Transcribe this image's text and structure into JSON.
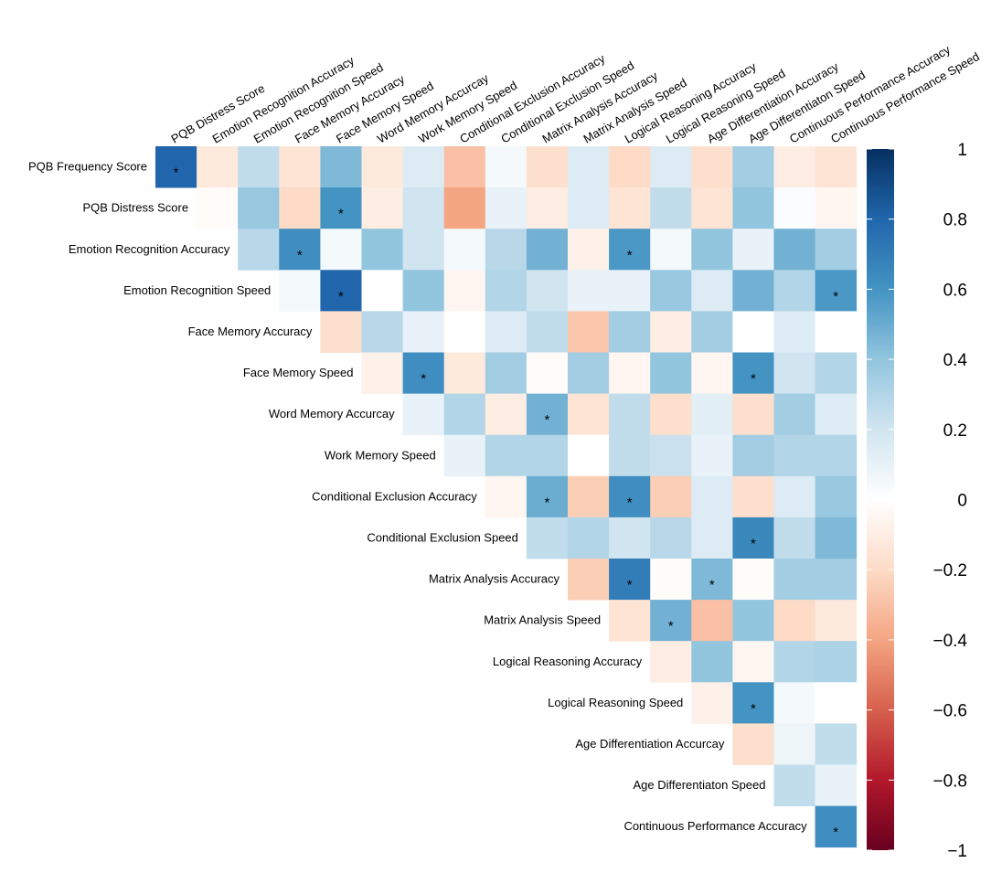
{
  "chart_data": {
    "type": "heatmap",
    "title": "",
    "row_labels": [
      "PQB Frequency Score",
      "PQB Distress Score",
      "Emotion Recognition Accuracy",
      "Emotion Recognition Speed",
      "Face Memory Accuracy",
      "Face Memory Speed",
      "Word Memory Accurcay",
      "Work Memory Speed",
      "Conditional Exclusion Accuracy",
      "Conditional Exclusion Speed",
      "Matrix Analysis Accuracy",
      "Matrix Analysis Speed",
      "Logical Reasoning Accuracy",
      "Logical Reasoning Speed",
      "Age Differentiation Accurcay",
      "Age Differentiaton Speed",
      "Continuous Performance Accuracy"
    ],
    "column_labels": [
      "PQB Distress Score",
      "Emotion Recognition Accuracy",
      "Emotion Recognition Speed",
      "Face Memory Accuracy",
      "Face Memory Speed",
      "Word Memory Accurcay",
      "Work Memory Speed",
      "Conditional Exclusion Accuracy",
      "Conditional Exclusion Speed",
      "Matrix Analysis Accuracy",
      "Matrix Analysis Speed",
      "Logical Reasoning Accuracy",
      "Logical Reasoning Speed",
      "Age Differentiation Accuracy",
      "Age Differentiaton Speed",
      "Continuous Performance Accuracy",
      "Continuous Performance Speed"
    ],
    "values": [
      [
        0.8,
        -0.12,
        0.25,
        -0.15,
        0.45,
        -0.12,
        0.15,
        -0.3,
        0.05,
        -0.18,
        0.15,
        -0.2,
        0.15,
        -0.18,
        0.35,
        -0.1,
        -0.15
      ],
      [
        null,
        -0.02,
        0.38,
        -0.2,
        0.6,
        -0.1,
        0.2,
        -0.4,
        0.1,
        -0.1,
        0.15,
        -0.15,
        0.25,
        -0.15,
        0.4,
        0.02,
        -0.05
      ],
      [
        null,
        null,
        0.28,
        0.62,
        0.05,
        0.4,
        0.2,
        0.05,
        0.28,
        0.48,
        -0.08,
        0.58,
        0.05,
        0.4,
        0.1,
        0.48,
        0.35
      ],
      [
        null,
        null,
        null,
        0.05,
        0.8,
        0.0,
        0.4,
        -0.05,
        0.3,
        0.2,
        0.1,
        0.1,
        0.38,
        0.15,
        0.48,
        0.3,
        0.58
      ],
      [
        null,
        null,
        null,
        null,
        -0.18,
        0.28,
        0.1,
        0.0,
        0.15,
        0.25,
        -0.28,
        0.35,
        -0.1,
        0.35,
        0.0,
        0.15,
        0.0
      ],
      [
        null,
        null,
        null,
        null,
        null,
        -0.08,
        0.62,
        -0.12,
        0.35,
        -0.02,
        0.35,
        -0.05,
        0.4,
        -0.05,
        0.6,
        0.2,
        0.3
      ],
      [
        null,
        null,
        null,
        null,
        null,
        null,
        0.1,
        0.3,
        -0.1,
        0.48,
        -0.15,
        0.25,
        -0.18,
        0.12,
        -0.18,
        0.35,
        0.15
      ],
      [
        null,
        null,
        null,
        null,
        null,
        null,
        null,
        0.1,
        0.3,
        0.3,
        0.0,
        0.25,
        0.22,
        0.1,
        0.35,
        0.3,
        0.3
      ],
      [
        null,
        null,
        null,
        null,
        null,
        null,
        null,
        null,
        -0.05,
        0.5,
        -0.25,
        0.62,
        -0.25,
        0.15,
        -0.18,
        0.15,
        0.38
      ],
      [
        null,
        null,
        null,
        null,
        null,
        null,
        null,
        null,
        null,
        0.25,
        0.3,
        0.2,
        0.28,
        0.15,
        0.65,
        0.25,
        0.45
      ],
      [
        null,
        null,
        null,
        null,
        null,
        null,
        null,
        null,
        null,
        null,
        -0.25,
        0.7,
        -0.02,
        0.45,
        -0.02,
        0.35,
        0.35
      ],
      [
        null,
        null,
        null,
        null,
        null,
        null,
        null,
        null,
        null,
        null,
        null,
        -0.15,
        0.48,
        -0.3,
        0.4,
        -0.2,
        -0.12
      ],
      [
        null,
        null,
        null,
        null,
        null,
        null,
        null,
        null,
        null,
        null,
        null,
        null,
        -0.1,
        0.4,
        -0.05,
        0.3,
        0.32
      ],
      [
        null,
        null,
        null,
        null,
        null,
        null,
        null,
        null,
        null,
        null,
        null,
        null,
        null,
        -0.08,
        0.6,
        0.05,
        0.0
      ],
      [
        null,
        null,
        null,
        null,
        null,
        null,
        null,
        null,
        null,
        null,
        null,
        null,
        null,
        null,
        -0.18,
        0.08,
        0.25
      ],
      [
        null,
        null,
        null,
        null,
        null,
        null,
        null,
        null,
        null,
        null,
        null,
        null,
        null,
        null,
        null,
        0.25,
        0.1
      ],
      [
        null,
        null,
        null,
        null,
        null,
        null,
        null,
        null,
        null,
        null,
        null,
        null,
        null,
        null,
        null,
        null,
        0.62
      ]
    ],
    "significant": [
      [
        0,
        0
      ],
      [
        1,
        4
      ],
      [
        2,
        3
      ],
      [
        2,
        11
      ],
      [
        3,
        4
      ],
      [
        3,
        16
      ],
      [
        5,
        6
      ],
      [
        5,
        14
      ],
      [
        6,
        9
      ],
      [
        8,
        9
      ],
      [
        8,
        11
      ],
      [
        9,
        14
      ],
      [
        10,
        11
      ],
      [
        10,
        13
      ],
      [
        11,
        12
      ],
      [
        13,
        14
      ],
      [
        16,
        16
      ]
    ],
    "significance_marker": "*",
    "colorbar": {
      "min": -1,
      "max": 1,
      "ticks": [
        1,
        0.8,
        0.6,
        0.4,
        0.2,
        0,
        -0.2,
        -0.4,
        -0.6,
        -0.8,
        -1
      ],
      "tick_labels": [
        "1",
        "0.8",
        "0.6",
        "0.4",
        "0.2",
        "0",
        "−0.2",
        "−0.4",
        "−0.6",
        "−0.8",
        "−1"
      ],
      "colors": [
        "#67001f",
        "#b2182b",
        "#d6604d",
        "#f4a582",
        "#fddbc7",
        "#ffffff",
        "#d1e5f0",
        "#92c5de",
        "#4393c3",
        "#2166ac",
        "#053061"
      ]
    }
  }
}
